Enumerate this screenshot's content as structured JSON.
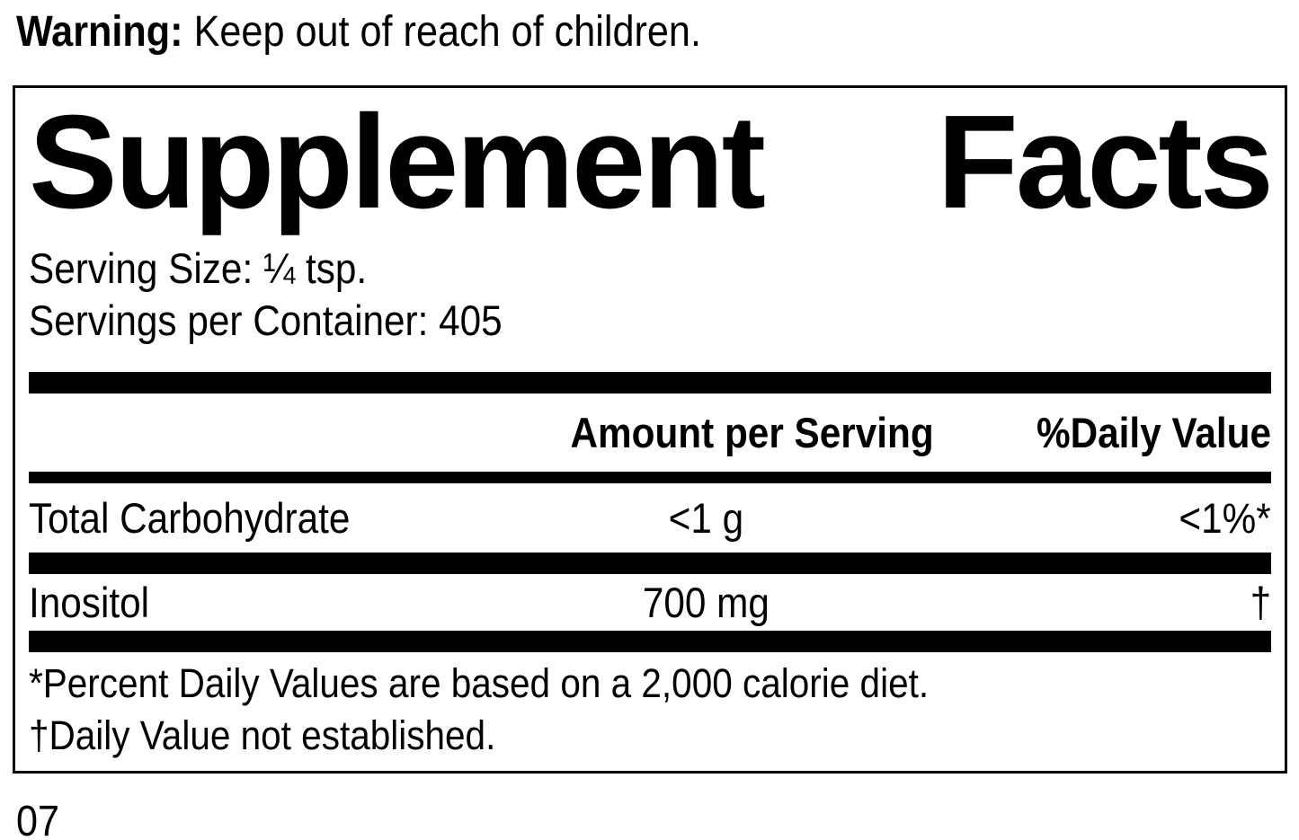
{
  "warning": {
    "label": "Warning:",
    "text": "Keep out of reach of children."
  },
  "panel": {
    "title_word_1": "Supplement",
    "title_word_2": "Facts",
    "serving_size": "Serving Size: ¼ tsp.",
    "servings_per_container": "Servings per Container: 405",
    "columns": {
      "amount": "Amount per Serving",
      "daily_value": "%Daily Value"
    },
    "rows": [
      {
        "name": "Total Carbohydrate",
        "amount": "<1 g",
        "dv": "<1%*"
      },
      {
        "name": "Inositol",
        "amount": "700 mg",
        "dv": "†"
      }
    ],
    "footnotes": [
      "*Percent Daily Values are based on a 2,000 calorie diet.",
      "†Daily Value not established."
    ]
  },
  "footer": {
    "page_code": "07"
  }
}
